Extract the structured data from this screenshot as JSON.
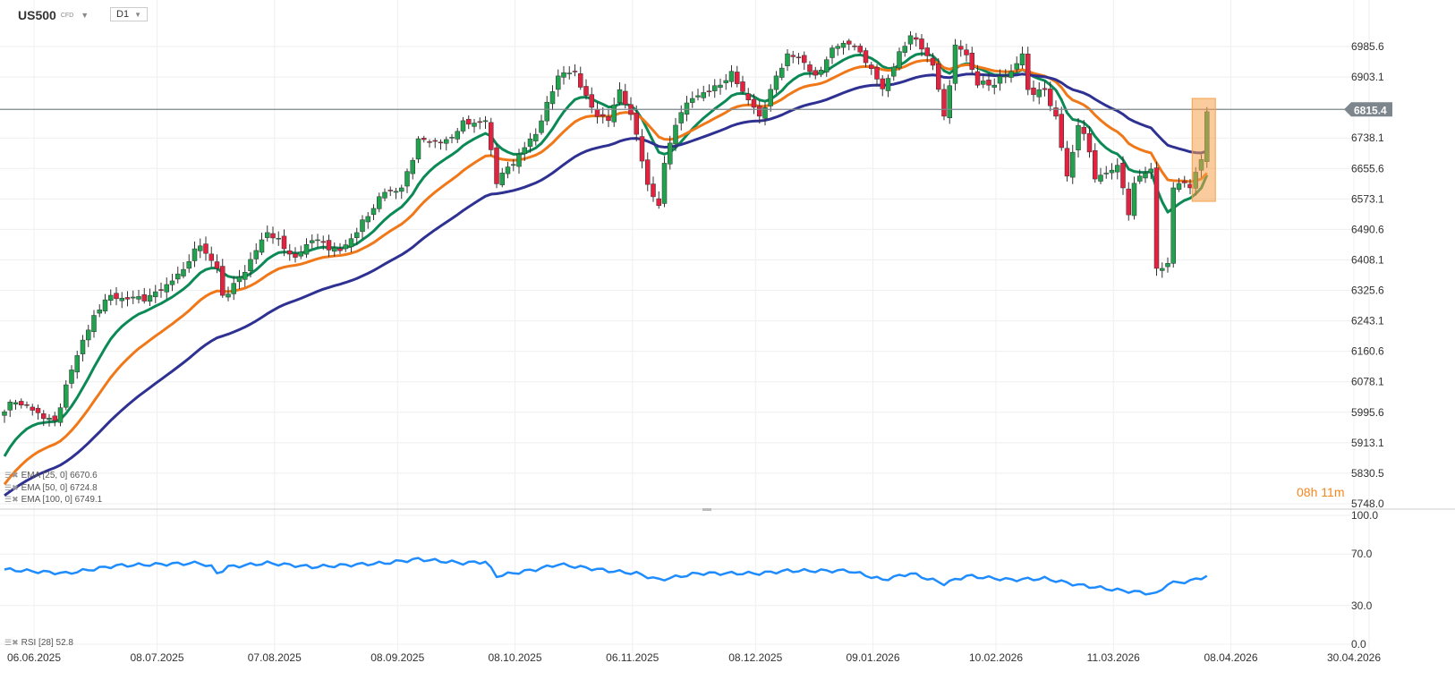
{
  "header": {
    "symbol": "US500",
    "instrument_type": "CFD",
    "timeframe": "D1"
  },
  "timer": {
    "hours": "08",
    "h": "h",
    "minutes": "11",
    "m": "m"
  },
  "indicators": [
    {
      "label": "EMA [25, 0] 6670.6",
      "color": "#0b8a55"
    },
    {
      "label": "EMA [50, 0] 6724.8",
      "color": "#f07818"
    },
    {
      "label": "EMA [100, 0] 6749.1",
      "color": "#2e3192"
    },
    {
      "label": "RSI [28] 52.8",
      "color": "#1e8cff"
    }
  ],
  "colors": {
    "up": "#21a24f",
    "down": "#e32240",
    "price_line": "#7c868c",
    "highlight": "#f5a04a"
  },
  "chart_data": [
    {
      "type": "candlestick",
      "title": "US500 D1",
      "current_price": "6815.4",
      "ylim": [
        5748.0,
        6985.6
      ],
      "y_ticks": [
        "6985.6",
        "6903.1",
        "6738.1",
        "6655.6",
        "6573.1",
        "6490.6",
        "6408.1",
        "6325.6",
        "6243.1",
        "6160.6",
        "6078.1",
        "5995.6",
        "5913.1",
        "5830.5",
        "5748.0"
      ],
      "x_ticks": [
        {
          "label": "06.06.2025",
          "day": 4
        },
        {
          "label": "08.07.2025",
          "day": 26
        },
        {
          "label": "07.08.2025",
          "day": 47
        },
        {
          "label": "08.09.2025",
          "day": 69
        },
        {
          "label": "08.10.2025",
          "day": 90
        },
        {
          "label": "06.11.2025",
          "day": 111
        },
        {
          "label": "08.12.2025",
          "day": 133
        },
        {
          "label": "09.01.2026",
          "day": 154
        },
        {
          "label": "10.02.2026",
          "day": 176
        },
        {
          "label": "11.03.2026",
          "day": 197
        },
        {
          "label": "08.04.2026",
          "day": 218
        },
        {
          "label": "30.04.2026",
          "day": 240
        }
      ],
      "close_waypoints": [
        [
          0,
          5997
        ],
        [
          2,
          6022
        ],
        [
          9,
          5973
        ],
        [
          11,
          6070
        ],
        [
          14,
          6191
        ],
        [
          18,
          6300
        ],
        [
          26,
          6312
        ],
        [
          31,
          6361
        ],
        [
          35,
          6446
        ],
        [
          38,
          6385
        ],
        [
          39,
          6312
        ],
        [
          42,
          6361
        ],
        [
          47,
          6482
        ],
        [
          52,
          6409
        ],
        [
          55,
          6470
        ],
        [
          60,
          6433
        ],
        [
          63,
          6482
        ],
        [
          68,
          6591
        ],
        [
          71,
          6603
        ],
        [
          74,
          6736
        ],
        [
          79,
          6724
        ],
        [
          82,
          6772
        ],
        [
          86,
          6785
        ],
        [
          88,
          6627
        ],
        [
          91,
          6676
        ],
        [
          95,
          6748
        ],
        [
          97,
          6821
        ],
        [
          99,
          6906
        ],
        [
          102,
          6918
        ],
        [
          105,
          6821
        ],
        [
          108,
          6785
        ],
        [
          110,
          6869
        ],
        [
          113,
          6748
        ],
        [
          115,
          6603
        ],
        [
          117,
          6555
        ],
        [
          118,
          6676
        ],
        [
          121,
          6821
        ],
        [
          124,
          6857
        ],
        [
          127,
          6869
        ],
        [
          130,
          6906
        ],
        [
          134,
          6821
        ],
        [
          135,
          6797
        ],
        [
          138,
          6906
        ],
        [
          140,
          6966
        ],
        [
          143,
          6942
        ],
        [
          145,
          6894
        ],
        [
          148,
          6978
        ],
        [
          151,
          7003
        ],
        [
          154,
          6954
        ],
        [
          157,
          6869
        ],
        [
          159,
          6930
        ],
        [
          162,
          7015
        ],
        [
          166,
          6942
        ],
        [
          168,
          6797
        ],
        [
          170,
          6990
        ],
        [
          172,
          6966
        ],
        [
          174,
          6881
        ],
        [
          177,
          6881
        ],
        [
          180,
          6918
        ],
        [
          182,
          6966
        ],
        [
          183,
          6869
        ],
        [
          186,
          6869
        ],
        [
          188,
          6797
        ],
        [
          190,
          6627
        ],
        [
          192,
          6772
        ],
        [
          194,
          6700
        ],
        [
          195,
          6627
        ],
        [
          198,
          6651
        ],
        [
          199,
          6676
        ],
        [
          201,
          6530
        ],
        [
          202,
          6627
        ],
        [
          205,
          6651
        ],
        [
          206,
          6385
        ],
        [
          208,
          6385
        ],
        [
          209,
          6603
        ],
        [
          210,
          6615
        ],
        [
          212,
          6603
        ],
        [
          214,
          6688
        ],
        [
          215,
          6809
        ]
      ],
      "ema_series": [
        {
          "name": "EMA 25",
          "period": 25,
          "seed": 5852,
          "color": "#0b8a55"
        },
        {
          "name": "EMA 50",
          "period": 50,
          "seed": 5782,
          "color": "#f07818"
        },
        {
          "name": "EMA 100",
          "period": 100,
          "seed": 5760,
          "color": "#2e3192"
        }
      ]
    },
    {
      "type": "line",
      "title": "RSI [28]",
      "ylim": [
        0,
        100
      ],
      "y_ticks": [
        "100.0",
        "70.0",
        "30.0",
        "0.0"
      ],
      "values": [
        [
          0,
          58
        ],
        [
          11,
          55
        ],
        [
          20,
          61
        ],
        [
          35,
          63
        ],
        [
          37,
          60
        ],
        [
          38,
          55
        ],
        [
          40,
          60
        ],
        [
          47,
          63
        ],
        [
          55,
          60
        ],
        [
          68,
          63
        ],
        [
          74,
          66
        ],
        [
          82,
          63
        ],
        [
          86,
          64
        ],
        [
          88,
          53
        ],
        [
          95,
          58
        ],
        [
          99,
          62
        ],
        [
          108,
          57
        ],
        [
          113,
          55
        ],
        [
          117,
          50
        ],
        [
          124,
          55
        ],
        [
          135,
          55
        ],
        [
          140,
          57
        ],
        [
          151,
          57
        ],
        [
          157,
          50
        ],
        [
          162,
          55
        ],
        [
          168,
          47
        ],
        [
          172,
          53
        ],
        [
          180,
          50
        ],
        [
          186,
          51
        ],
        [
          192,
          46
        ],
        [
          199,
          42
        ],
        [
          206,
          39
        ],
        [
          208,
          47
        ],
        [
          212,
          49
        ],
        [
          215,
          53
        ]
      ]
    }
  ]
}
